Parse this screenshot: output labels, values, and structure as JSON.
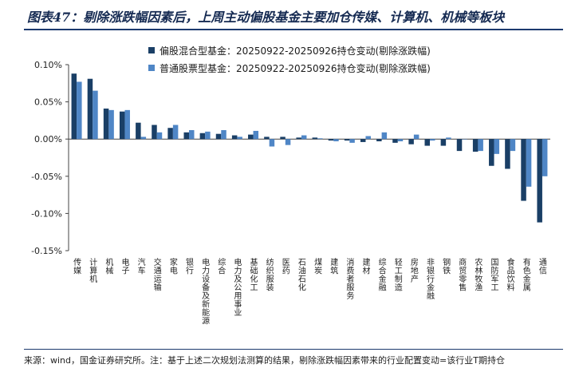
{
  "title": "图表47：剔除涨跌幅因素后，上周主动偏股基金主要加仓传媒、计算机、机械等板块",
  "footnote": "来源：wind，国金证券研究所。注：基于上述二次规划法测算的结果，剔除涨跌幅因素带来的行业配置变动=该行业T期持仓",
  "colors": {
    "series1": "#1a3f66",
    "series2": "#4f86c6",
    "rule": "#1c3a6e"
  },
  "chart_data": {
    "type": "bar",
    "title": "",
    "xlabel": "",
    "ylabel": "",
    "ylim": [
      -0.15,
      0.1
    ],
    "yticks": [
      0.1,
      0.05,
      0.0,
      -0.05,
      -0.1,
      -0.15
    ],
    "ytick_labels": [
      "0.10%",
      "0.05%",
      "0.00%",
      "-0.05%",
      "-0.10%",
      "-0.15%"
    ],
    "legend_position": "top-left",
    "grid": false,
    "categories": [
      "传媒",
      "计算机",
      "机械",
      "电子",
      "汽车",
      "交通运输",
      "家电",
      "银行",
      "电力设备及新能源",
      "综合",
      "电力及公用事业",
      "基础化工",
      "纺织服装",
      "医药",
      "石油石化",
      "煤炭",
      "建筑",
      "消费者服务",
      "建材",
      "综合金融",
      "轻工制造",
      "房地产",
      "非银行金融",
      "钢铁",
      "商贸零售",
      "农林牧渔",
      "国防军工",
      "食品饮料",
      "有色金属",
      "通信"
    ],
    "series": [
      {
        "name": "偏股混合型基金：20250922-20250926持仓变动(剔除涨跌幅)",
        "values": [
          0.088,
          0.081,
          0.041,
          0.037,
          0.022,
          0.019,
          0.015,
          0.009,
          0.008,
          0.007,
          0.005,
          0.006,
          0.003,
          0.003,
          0.002,
          0.002,
          -0.002,
          -0.002,
          -0.004,
          -0.003,
          -0.005,
          -0.007,
          -0.009,
          -0.009,
          -0.016,
          -0.017,
          -0.036,
          -0.04,
          -0.083,
          -0.112
        ]
      },
      {
        "name": "普通股票型基金：20250922-20250926持仓变动(剔除涨跌幅)",
        "values": [
          0.077,
          0.065,
          0.039,
          0.039,
          0.003,
          0.009,
          0.019,
          0.012,
          0.01,
          0.012,
          0.003,
          0.011,
          -0.01,
          -0.008,
          0.005,
          0.001,
          -0.003,
          -0.005,
          0.004,
          0.009,
          -0.003,
          0.006,
          -0.002,
          0.002,
          0.0,
          -0.016,
          -0.02,
          -0.016,
          -0.064,
          -0.05
        ]
      }
    ]
  }
}
